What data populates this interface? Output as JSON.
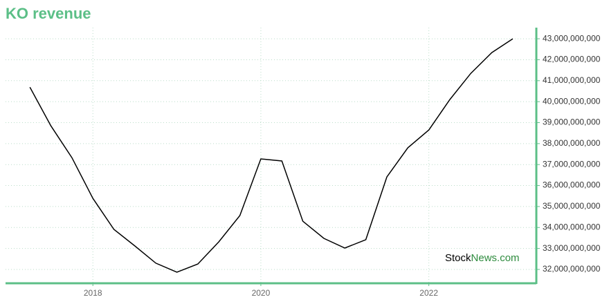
{
  "chart_data": {
    "type": "line",
    "title": "KO revenue",
    "x": [
      2017.25,
      2017.5,
      2017.75,
      2018,
      2018.25,
      2018.5,
      2018.75,
      2019,
      2019.25,
      2019.5,
      2019.75,
      2020,
      2020.25,
      2020.5,
      2020.75,
      2021,
      2021.25,
      2021.5,
      2021.75,
      2022,
      2022.25,
      2022.5,
      2022.75,
      2023
    ],
    "series": [
      {
        "name": "KO revenue",
        "color": "#000000",
        "values": [
          40690000000,
          38850000000,
          37330000000,
          35390000000,
          33910000000,
          33120000000,
          32300000000,
          31870000000,
          32260000000,
          33320000000,
          34570000000,
          37270000000,
          37170000000,
          34300000000,
          33480000000,
          33020000000,
          33420000000,
          36410000000,
          37800000000,
          38650000000,
          40100000000,
          41350000000,
          42340000000,
          43000000000
        ]
      }
    ],
    "xlim": [
      2016.96,
      2023.28
    ],
    "xticks": [
      2018,
      2020,
      2022
    ],
    "ylim": [
      31340000000,
      43530000000
    ],
    "yticks": [
      {
        "value": 32000000000,
        "label": "32,000,000,000"
      },
      {
        "value": 33000000000,
        "label": "33,000,000,000"
      },
      {
        "value": 34000000000,
        "label": "34,000,000,000"
      },
      {
        "value": 35000000000,
        "label": "35,000,000,000"
      },
      {
        "value": 36000000000,
        "label": "36,000,000,000"
      },
      {
        "value": 37000000000,
        "label": "37,000,000,000"
      },
      {
        "value": 38000000000,
        "label": "38,000,000,000"
      },
      {
        "value": 39000000000,
        "label": "39,000,000,000"
      },
      {
        "value": 40000000000,
        "label": "40,000,000,000"
      },
      {
        "value": 41000000000,
        "label": "41,000,000,000"
      },
      {
        "value": 42000000000,
        "label": "42,000,000,000"
      },
      {
        "value": 43000000000,
        "label": "43,000,000,000"
      }
    ],
    "grid": true,
    "axis_color": "#5cbf87",
    "watermark": [
      "Stock",
      "News.com"
    ]
  }
}
